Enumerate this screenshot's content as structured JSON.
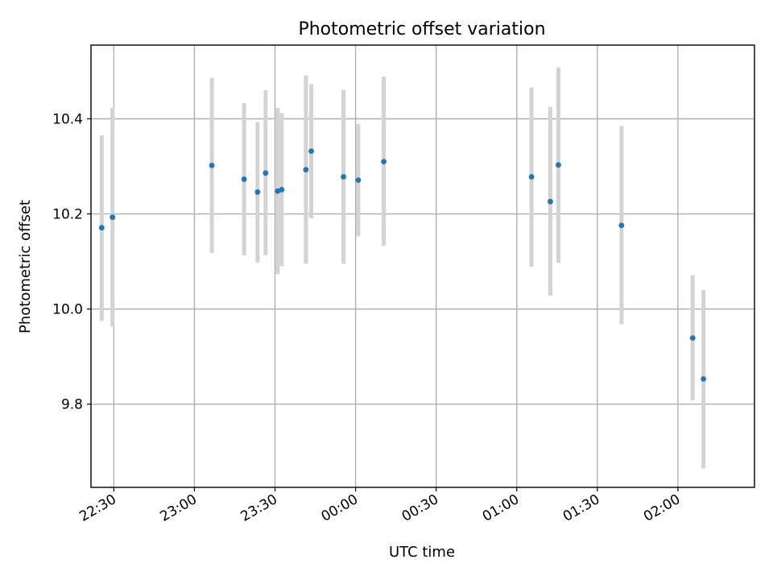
{
  "chart_data": {
    "type": "scatter",
    "title": "Photometric offset variation",
    "xlabel": "UTC time",
    "ylabel": "Photometric offset",
    "xlim": [
      "22:21:30",
      "02:28:30"
    ],
    "ylim": [
      9.625,
      10.555
    ],
    "grid": true,
    "x_ticks": [
      "22:30",
      "23:00",
      "23:30",
      "00:00",
      "00:30",
      "01:00",
      "01:30",
      "02:00"
    ],
    "y_ticks": [
      "9.8",
      "10.0",
      "10.2",
      "10.4"
    ],
    "points": [
      {
        "x": "22:25:30",
        "y": 10.171,
        "err_low": 9.975,
        "err_high": 10.365
      },
      {
        "x": "22:29:30",
        "y": 10.193,
        "err_low": 9.963,
        "err_high": 10.423
      },
      {
        "x": "23:06:30",
        "y": 10.302,
        "err_low": 10.118,
        "err_high": 10.486
      },
      {
        "x": "23:18:30",
        "y": 10.273,
        "err_low": 10.113,
        "err_high": 10.433
      },
      {
        "x": "23:23:30",
        "y": 10.246,
        "err_low": 10.098,
        "err_high": 10.393
      },
      {
        "x": "23:26:30",
        "y": 10.286,
        "err_low": 10.113,
        "err_high": 10.46
      },
      {
        "x": "23:31:00",
        "y": 10.248,
        "err_low": 10.073,
        "err_high": 10.423
      },
      {
        "x": "23:32:30",
        "y": 10.251,
        "err_low": 10.09,
        "err_high": 10.412
      },
      {
        "x": "23:41:30",
        "y": 10.293,
        "err_low": 10.095,
        "err_high": 10.491
      },
      {
        "x": "23:43:30",
        "y": 10.332,
        "err_low": 10.191,
        "err_high": 10.473
      },
      {
        "x": "23:55:30",
        "y": 10.278,
        "err_low": 10.095,
        "err_high": 10.461
      },
      {
        "x": "00:01:00",
        "y": 10.271,
        "err_low": 10.153,
        "err_high": 10.389
      },
      {
        "x": "00:10:30",
        "y": 10.31,
        "err_low": 10.133,
        "err_high": 10.489
      },
      {
        "x": "01:05:30",
        "y": 10.278,
        "err_low": 10.089,
        "err_high": 10.466
      },
      {
        "x": "01:12:30",
        "y": 10.226,
        "err_low": 10.028,
        "err_high": 10.425
      },
      {
        "x": "01:15:30",
        "y": 10.303,
        "err_low": 10.097,
        "err_high": 10.508
      },
      {
        "x": "01:39:00",
        "y": 10.176,
        "err_low": 9.968,
        "err_high": 10.385
      },
      {
        "x": "02:05:30",
        "y": 9.939,
        "err_low": 9.808,
        "err_high": 10.071
      },
      {
        "x": "02:09:30",
        "y": 9.853,
        "err_low": 9.665,
        "err_high": 10.04
      }
    ]
  }
}
